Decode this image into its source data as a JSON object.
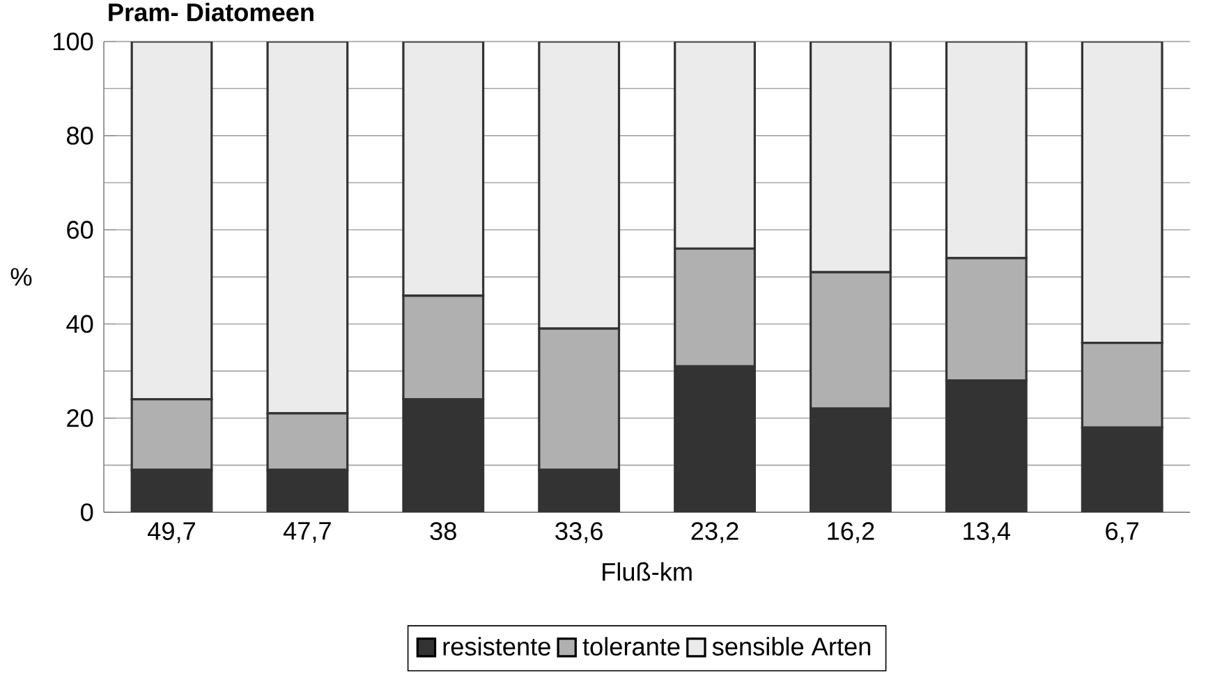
{
  "chart_data": {
    "type": "bar",
    "stacked": true,
    "title": "Pram- Diatomeen",
    "xlabel": "Fluß-km",
    "ylabel": "%",
    "categories": [
      "49,7",
      "47,7",
      "38",
      "33,6",
      "23,2",
      "16,2",
      "13,4",
      "6,7"
    ],
    "series": [
      {
        "name": "resistente",
        "color": "#333333",
        "values": [
          9,
          9,
          24,
          9,
          31,
          22,
          28,
          18
        ]
      },
      {
        "name": "tolerante",
        "color": "#b0b0b0",
        "values": [
          15,
          12,
          22,
          30,
          25,
          29,
          26,
          18
        ]
      },
      {
        "name": "sensible Arten",
        "color": "#ebebeb",
        "values": [
          76,
          79,
          54,
          61,
          44,
          49,
          46,
          64
        ]
      }
    ],
    "ylim": [
      0,
      100
    ],
    "yticks": [
      0,
      20,
      40,
      60,
      80,
      100
    ],
    "grid": "y",
    "legend": "bottom"
  }
}
